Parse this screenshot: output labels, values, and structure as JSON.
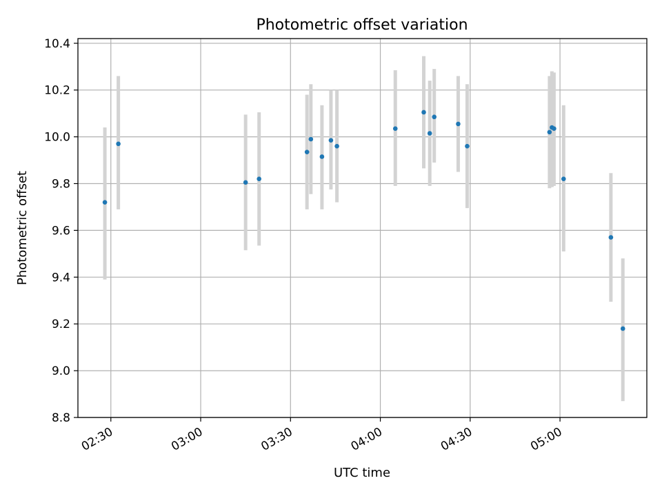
{
  "chart_data": {
    "type": "scatter",
    "title": "Photometric offset variation",
    "xlabel": "UTC time",
    "ylabel": "Photometric offset",
    "xlim": [
      "02:19",
      "05:29"
    ],
    "ylim": [
      8.8,
      10.42
    ],
    "x_ticks": [
      "02:30",
      "03:00",
      "03:30",
      "04:00",
      "04:30",
      "05:00"
    ],
    "y_ticks": [
      "8.8",
      "9.0",
      "9.2",
      "9.4",
      "9.6",
      "9.8",
      "10.0",
      "10.2",
      "10.4"
    ],
    "grid": true,
    "point_color": "#1f77b4",
    "errorbar_color": "#d3d3d3",
    "series": [
      {
        "name": "offset",
        "points": [
          {
            "time": "02:28",
            "y": 9.72,
            "err_low": 9.39,
            "err_high": 10.04
          },
          {
            "time": "02:32.5",
            "y": 9.97,
            "err_low": 9.69,
            "err_high": 10.26
          },
          {
            "time": "03:15",
            "y": 9.805,
            "err_low": 9.515,
            "err_high": 10.095
          },
          {
            "time": "03:19.5",
            "y": 9.82,
            "err_low": 9.535,
            "err_high": 10.105
          },
          {
            "time": "03:35.5",
            "y": 9.935,
            "err_low": 9.69,
            "err_high": 10.18
          },
          {
            "time": "03:36.8",
            "y": 9.99,
            "err_low": 9.755,
            "err_high": 10.225
          },
          {
            "time": "03:40.5",
            "y": 9.915,
            "err_low": 9.69,
            "err_high": 10.135
          },
          {
            "time": "03:43.5",
            "y": 9.985,
            "err_low": 9.775,
            "err_high": 10.2
          },
          {
            "time": "03:45.5",
            "y": 9.96,
            "err_low": 9.72,
            "err_high": 10.2
          },
          {
            "time": "04:05",
            "y": 10.035,
            "err_low": 9.79,
            "err_high": 10.285
          },
          {
            "time": "04:14.5",
            "y": 10.105,
            "err_low": 9.865,
            "err_high": 10.345
          },
          {
            "time": "04:16.5",
            "y": 10.015,
            "err_low": 9.79,
            "err_high": 10.24
          },
          {
            "time": "04:18",
            "y": 10.085,
            "err_low": 9.89,
            "err_high": 10.29
          },
          {
            "time": "04:26",
            "y": 10.055,
            "err_low": 9.85,
            "err_high": 10.26
          },
          {
            "time": "04:29",
            "y": 9.96,
            "err_low": 9.695,
            "err_high": 10.225
          },
          {
            "time": "04:56.5",
            "y": 10.02,
            "err_low": 9.78,
            "err_high": 10.26
          },
          {
            "time": "04:57.3",
            "y": 10.04,
            "err_low": 9.785,
            "err_high": 10.28
          },
          {
            "time": "04:58",
            "y": 10.035,
            "err_low": 9.79,
            "err_high": 10.275
          },
          {
            "time": "05:01.2",
            "y": 9.82,
            "err_low": 9.51,
            "err_high": 10.135
          },
          {
            "time": "05:17",
            "y": 9.57,
            "err_low": 9.295,
            "err_high": 9.845
          },
          {
            "time": "05:21",
            "y": 9.18,
            "err_low": 8.87,
            "err_high": 9.48
          }
        ]
      }
    ]
  }
}
